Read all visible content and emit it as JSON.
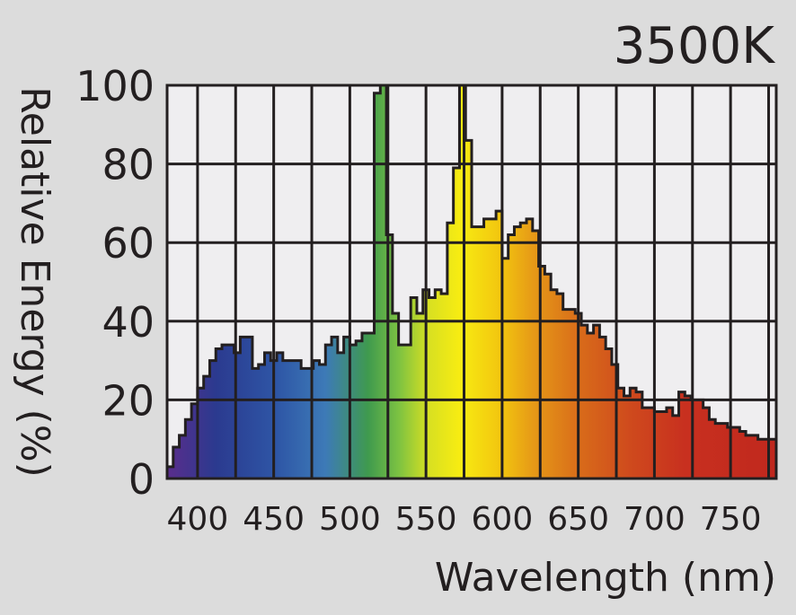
{
  "chart_data": {
    "type": "area",
    "title": "3500K",
    "xlabel": "Wavelength (nm)",
    "ylabel": "Relative Energy (%)",
    "xlim": [
      380,
      780
    ],
    "ylim": [
      0,
      100
    ],
    "grid": true,
    "legend": "none",
    "x_ticks": [
      400,
      450,
      500,
      550,
      600,
      650,
      700,
      750
    ],
    "x_tick_labels": [
      "400",
      "450",
      "500",
      "550",
      "600",
      "650",
      "700",
      "750"
    ],
    "y_ticks": [
      0,
      20,
      40,
      60,
      80,
      100
    ],
    "y_tick_labels": [
      "0",
      "20",
      "40",
      "60",
      "80",
      "100"
    ],
    "series": [
      {
        "bin_width": 4,
        "x": [
          380,
          384,
          388,
          392,
          396,
          400,
          404,
          408,
          412,
          416,
          420,
          424,
          428,
          432,
          436,
          440,
          444,
          448,
          452,
          456,
          460,
          464,
          468,
          472,
          476,
          480,
          484,
          488,
          492,
          496,
          500,
          504,
          508,
          512,
          516,
          520,
          524,
          528,
          532,
          536,
          540,
          544,
          548,
          552,
          556,
          560,
          564,
          568,
          572,
          576,
          580,
          584,
          588,
          592,
          596,
          600,
          604,
          608,
          612,
          616,
          620,
          624,
          628,
          632,
          636,
          640,
          644,
          648,
          652,
          656,
          660,
          664,
          668,
          672,
          676,
          680,
          684,
          688,
          692,
          696,
          700,
          704,
          708,
          712,
          716,
          720,
          724,
          728,
          732,
          736,
          740,
          744,
          748,
          752,
          756,
          760,
          764,
          768,
          772,
          776
        ],
        "values": [
          3,
          8,
          11,
          15,
          19,
          23,
          26,
          30,
          33,
          34,
          34,
          32,
          36,
          36,
          28,
          29,
          32,
          30,
          32,
          30,
          30,
          30,
          28,
          28,
          30,
          29,
          34,
          36,
          32,
          36,
          34,
          35,
          37,
          37,
          98,
          100,
          62,
          42,
          34,
          34,
          46,
          42,
          48,
          46,
          48,
          47,
          65,
          79,
          100,
          86,
          64,
          64,
          66,
          66,
          68,
          56,
          62,
          64,
          65,
          66,
          63,
          54,
          52,
          48,
          47,
          43,
          43,
          42,
          39,
          37,
          39,
          36,
          33,
          29,
          23,
          21,
          23,
          22,
          18,
          18,
          17,
          17,
          18,
          16,
          22,
          21,
          20,
          20,
          18,
          15,
          14,
          14,
          13,
          13,
          12,
          11,
          11,
          10,
          10,
          10
        ]
      }
    ]
  }
}
